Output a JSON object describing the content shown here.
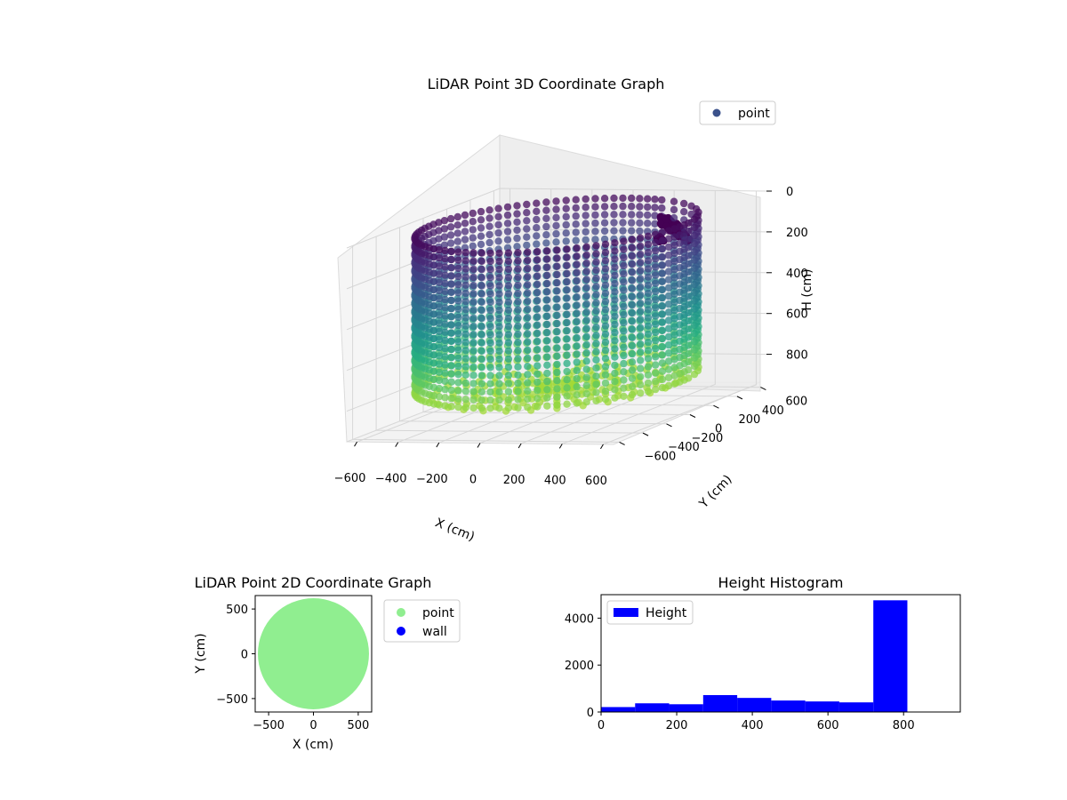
{
  "chart_data": [
    {
      "type": "scatter3d",
      "title": "LiDAR Point 3D Coordinate Graph",
      "xlabel": "X (cm)",
      "ylabel": "Y (cm)",
      "zlabel": "H (cm)",
      "xticks": [
        -600,
        -400,
        -200,
        0,
        200,
        400,
        600
      ],
      "yticks": [
        -600,
        -400,
        -200,
        0,
        200,
        400,
        600
      ],
      "zticks": [
        0,
        200,
        400,
        600,
        800
      ],
      "xlim": [
        -650,
        650
      ],
      "ylim": [
        -650,
        650
      ],
      "zlim": [
        0,
        950
      ],
      "zinverted": true,
      "legend": [
        {
          "label": "point",
          "color": "#3b528b"
        }
      ],
      "legend_position": "top-right",
      "colormap": "viridis",
      "wall": {
        "radius": 600,
        "height_min": 30,
        "height_max": 800
      },
      "dark_cluster": {
        "x": 260,
        "y": 560,
        "h_min": 110,
        "h_max": 230,
        "color": "#440154"
      }
    },
    {
      "type": "scatter",
      "title": "LiDAR Point 2D Coordinate Graph",
      "xlabel": "X (cm)",
      "ylabel": "Y (cm)",
      "xticks": [
        -500,
        0,
        500
      ],
      "yticks": [
        -500,
        0,
        500
      ],
      "xlim": [
        -650,
        650
      ],
      "ylim": [
        -650,
        650
      ],
      "series": [
        {
          "name": "point",
          "color": "#90ee90",
          "disc_radius": 620
        },
        {
          "name": "wall",
          "color": "#0000ff"
        }
      ],
      "legend_position": "outside-right"
    },
    {
      "type": "bar",
      "title": "Height Histogram",
      "xlabel": "",
      "ylabel": "",
      "legend": [
        {
          "label": "Height",
          "color": "#0000ff"
        }
      ],
      "legend_position": "top-left",
      "bin_edges": [
        0,
        90,
        180,
        270,
        360,
        450,
        540,
        630,
        720,
        810,
        900
      ],
      "values": [
        210,
        370,
        330,
        720,
        600,
        490,
        450,
        410,
        4760,
        0
      ],
      "xticks": [
        0,
        200,
        400,
        600,
        800
      ],
      "yticks": [
        0,
        2000,
        4000
      ],
      "xlim": [
        0,
        950
      ],
      "ylim": [
        0,
        5000
      ]
    }
  ]
}
